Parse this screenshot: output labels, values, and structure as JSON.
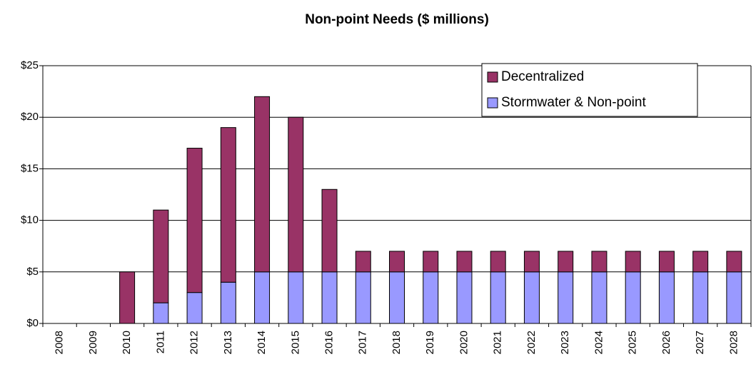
{
  "chart_data": {
    "type": "stacked_bar",
    "title": "Non-point Needs ($ millions)",
    "categories": [
      "2008",
      "2009",
      "2010",
      "2011",
      "2012",
      "2013",
      "2014",
      "2015",
      "2016",
      "2017",
      "2018",
      "2019",
      "2020",
      "2021",
      "2022",
      "2023",
      "2024",
      "2025",
      "2026",
      "2027",
      "2028"
    ],
    "series": [
      {
        "name": "Stormwater & Non-point",
        "color": "#9999ff",
        "values": [
          0,
          0,
          0,
          2,
          3,
          4,
          5,
          5,
          5,
          5,
          5,
          5,
          5,
          5,
          5,
          5,
          5,
          5,
          5,
          5,
          5
        ]
      },
      {
        "name": "Decentralized",
        "color": "#993366",
        "values": [
          0,
          0,
          5,
          9,
          14,
          15,
          17,
          15,
          8,
          2,
          2,
          2,
          2,
          2,
          2,
          2,
          2,
          2,
          2,
          2,
          2
        ]
      }
    ],
    "ylim": [
      0,
      25
    ],
    "yticks": [
      {
        "value": 0,
        "label": "$0"
      },
      {
        "value": 5,
        "label": "$5"
      },
      {
        "value": 10,
        "label": "$10"
      },
      {
        "value": 15,
        "label": "$15"
      },
      {
        "value": 20,
        "label": "$20"
      },
      {
        "value": 25,
        "label": "$25"
      }
    ],
    "grid": true,
    "legend": "upper right"
  }
}
